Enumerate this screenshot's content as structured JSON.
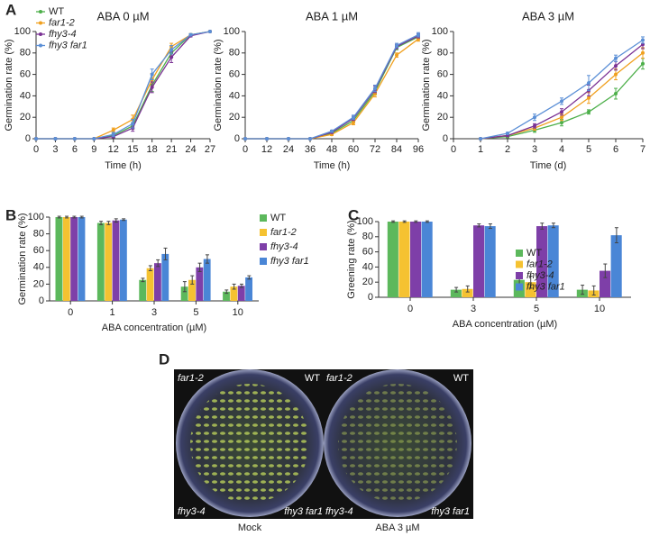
{
  "panel_labels": [
    "A",
    "B",
    "C",
    "D"
  ],
  "chart_data": [
    {
      "type": "line",
      "title": "ABA 0 µM",
      "x_label": "Time (h)",
      "y_label": "Germination rate (%)",
      "x": [
        0,
        3,
        6,
        9,
        12,
        15,
        18,
        21,
        24,
        27
      ],
      "xlim": [
        0,
        27
      ],
      "xticks": [
        0,
        3,
        6,
        9,
        12,
        15,
        18,
        21,
        24,
        27
      ],
      "ylim": [
        0,
        100
      ],
      "yticks": [
        0,
        20,
        40,
        60,
        80,
        100
      ],
      "legend": "upper left",
      "series": [
        {
          "name": "WT",
          "color": "#4daf4a",
          "values": [
            0,
            0,
            0,
            0,
            3,
            12,
            50,
            80,
            97,
            100
          ],
          "errors": [
            0,
            0,
            0,
            0,
            2,
            3,
            6,
            4,
            1,
            0
          ]
        },
        {
          "name": "far1-2",
          "color": "#f0a01e",
          "values": [
            0,
            0,
            0,
            0,
            8,
            18,
            55,
            86,
            97,
            100
          ],
          "errors": [
            0,
            0,
            0,
            0,
            2,
            4,
            6,
            3,
            1,
            0
          ]
        },
        {
          "name": "fhy3-4",
          "color": "#7b3294",
          "values": [
            0,
            0,
            0,
            0,
            2,
            10,
            48,
            76,
            96,
            100
          ],
          "errors": [
            0,
            0,
            0,
            0,
            1,
            3,
            5,
            5,
            1,
            0
          ]
        },
        {
          "name": "fhy3 far1",
          "color": "#5b8fd6",
          "values": [
            0,
            0,
            0,
            0,
            4,
            14,
            60,
            83,
            97,
            100
          ],
          "errors": [
            0,
            0,
            0,
            0,
            2,
            4,
            5,
            4,
            1,
            0
          ]
        }
      ]
    },
    {
      "type": "line",
      "title": "ABA 1 µM",
      "x_label": "Time (h)",
      "y_label": "Germination rate (%)",
      "x": [
        0,
        12,
        24,
        36,
        48,
        60,
        72,
        84,
        96
      ],
      "xlim": [
        0,
        96
      ],
      "xticks": [
        0,
        12,
        24,
        36,
        48,
        60,
        72,
        84,
        96
      ],
      "ylim": [
        0,
        100
      ],
      "yticks": [
        0,
        20,
        40,
        60,
        80,
        100
      ],
      "series": [
        {
          "name": "WT",
          "color": "#4daf4a",
          "values": [
            0,
            0,
            0,
            0,
            5,
            17,
            44,
            85,
            95
          ],
          "errors": [
            0,
            0,
            0,
            0,
            1,
            2,
            3,
            2,
            2
          ]
        },
        {
          "name": "far1-2",
          "color": "#f0a01e",
          "values": [
            0,
            0,
            0,
            0,
            4,
            15,
            42,
            78,
            93
          ],
          "errors": [
            0,
            0,
            0,
            0,
            1,
            2,
            3,
            2,
            2
          ]
        },
        {
          "name": "fhy3-4",
          "color": "#7b3294",
          "values": [
            0,
            0,
            0,
            0,
            6,
            19,
            46,
            86,
            96
          ],
          "errors": [
            0,
            0,
            0,
            0,
            1,
            2,
            3,
            2,
            2
          ]
        },
        {
          "name": "fhy3 far1",
          "color": "#5b8fd6",
          "values": [
            0,
            0,
            0,
            0,
            7,
            20,
            47,
            87,
            97
          ],
          "errors": [
            0,
            0,
            0,
            0,
            1,
            2,
            3,
            2,
            2
          ]
        }
      ]
    },
    {
      "type": "line",
      "title": "ABA 3 µM",
      "x_label": "Time (d)",
      "y_label": "Germination rate (%)",
      "x": [
        1,
        2,
        3,
        4,
        5,
        6,
        7
      ],
      "xlim": [
        0,
        7
      ],
      "xticks": [
        0,
        1,
        2,
        3,
        4,
        5,
        6,
        7
      ],
      "ylim": [
        0,
        100
      ],
      "yticks": [
        0,
        20,
        40,
        60,
        80,
        100
      ],
      "series": [
        {
          "name": "WT",
          "color": "#4daf4a",
          "values": [
            0,
            2,
            8,
            15,
            25,
            42,
            70
          ],
          "errors": [
            0,
            1,
            2,
            3,
            2,
            5,
            5
          ]
        },
        {
          "name": "far1-2",
          "color": "#f0a01e",
          "values": [
            0,
            3,
            10,
            20,
            38,
            60,
            80
          ],
          "errors": [
            0,
            1,
            2,
            3,
            5,
            5,
            5
          ]
        },
        {
          "name": "fhy3-4",
          "color": "#7b3294",
          "values": [
            0,
            3,
            12,
            25,
            45,
            68,
            88
          ],
          "errors": [
            0,
            1,
            2,
            3,
            5,
            4,
            4
          ]
        },
        {
          "name": "fhy3 far1",
          "color": "#5b8fd6",
          "values": [
            0,
            5,
            20,
            35,
            52,
            75,
            92
          ],
          "errors": [
            0,
            1,
            3,
            3,
            7,
            3,
            3
          ]
        }
      ]
    },
    {
      "type": "bar",
      "x_label": "ABA concentration (µM)",
      "y_label": "Germination rate (%)",
      "categories": [
        "0",
        "1",
        "3",
        "5",
        "10"
      ],
      "ylim": [
        0,
        100
      ],
      "yticks": [
        0,
        20,
        40,
        60,
        80,
        100
      ],
      "legend": "right",
      "series": [
        {
          "name": "WT",
          "color": "#5cb85c",
          "values": [
            100,
            93,
            25,
            17,
            11
          ],
          "errors": [
            1,
            2,
            2,
            6,
            2
          ]
        },
        {
          "name": "far1-2",
          "color": "#f5c231",
          "values": [
            100,
            93,
            39,
            25,
            17
          ],
          "errors": [
            1,
            2,
            3,
            5,
            3
          ]
        },
        {
          "name": "fhy3-4",
          "color": "#7e3fa8",
          "values": [
            100,
            96,
            45,
            40,
            18
          ],
          "errors": [
            1,
            2,
            4,
            5,
            2
          ]
        },
        {
          "name": "fhy3 far1",
          "color": "#4a86d6",
          "values": [
            100,
            97,
            56,
            50,
            28
          ],
          "errors": [
            1,
            1,
            7,
            5,
            2
          ]
        }
      ]
    },
    {
      "type": "bar",
      "x_label": "ABA concentration (µM)",
      "y_label": "Greening rate (%)",
      "categories": [
        "0",
        "3",
        "5",
        "10"
      ],
      "ylim": [
        0,
        100
      ],
      "yticks": [
        0,
        20,
        40,
        60,
        80,
        100
      ],
      "legend": "right",
      "series": [
        {
          "name": "WT",
          "color": "#5cb85c",
          "values": [
            100,
            10,
            23,
            10
          ],
          "errors": [
            1,
            3,
            8,
            6
          ]
        },
        {
          "name": "far1-2",
          "color": "#f5c231",
          "values": [
            100,
            11,
            20,
            9
          ],
          "errors": [
            1,
            4,
            8,
            6
          ]
        },
        {
          "name": "fhy3-4",
          "color": "#7e3fa8",
          "values": [
            100,
            95,
            94,
            35
          ],
          "errors": [
            1,
            2,
            4,
            9
          ]
        },
        {
          "name": "fhy3 far1",
          "color": "#4a86d6",
          "values": [
            100,
            94,
            95,
            82
          ],
          "errors": [
            1,
            3,
            3,
            10
          ]
        }
      ]
    }
  ],
  "panel_d": {
    "plates": [
      {
        "caption": "Mock",
        "top_left": "far1-2",
        "top_right": "WT",
        "bottom_left": "fhy3-4",
        "bottom_right": "fhy3 far1"
      },
      {
        "caption": "ABA 3 µM",
        "top_left": "far1-2",
        "top_right": "WT",
        "bottom_left": "fhy3-4",
        "bottom_right": "fhy3 far1"
      }
    ]
  }
}
